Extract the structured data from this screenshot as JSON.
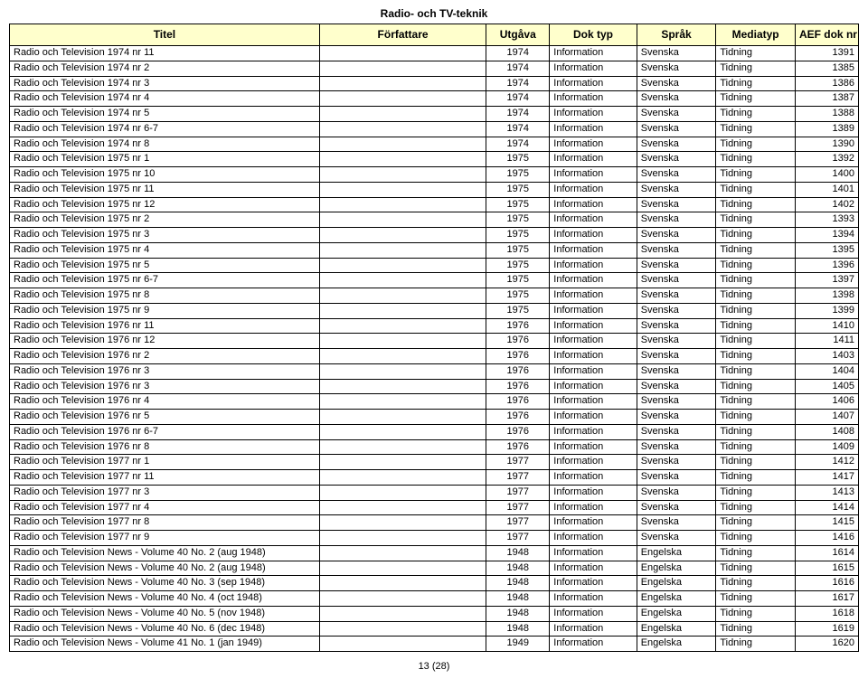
{
  "pageTitle": "Radio- och TV-teknik",
  "footer": "13 (28)",
  "headers": {
    "title": "Titel",
    "author": "Författare",
    "edition": "Utgåva",
    "doctype": "Dok typ",
    "lang": "Språk",
    "media": "Mediatyp",
    "doknr": "AEF dok nr"
  },
  "rows": [
    {
      "title": "Radio och Television 1974 nr 11",
      "author": "",
      "ed": "1974",
      "doc": "Information",
      "lang": "Svenska",
      "media": "Tidning",
      "nr": "1391"
    },
    {
      "title": "Radio och Television 1974 nr 2",
      "author": "",
      "ed": "1974",
      "doc": "Information",
      "lang": "Svenska",
      "media": "Tidning",
      "nr": "1385"
    },
    {
      "title": "Radio och Television 1974 nr 3",
      "author": "",
      "ed": "1974",
      "doc": "Information",
      "lang": "Svenska",
      "media": "Tidning",
      "nr": "1386"
    },
    {
      "title": "Radio och Television 1974 nr 4",
      "author": "",
      "ed": "1974",
      "doc": "Information",
      "lang": "Svenska",
      "media": "Tidning",
      "nr": "1387"
    },
    {
      "title": "Radio och Television 1974 nr 5",
      "author": "",
      "ed": "1974",
      "doc": "Information",
      "lang": "Svenska",
      "media": "Tidning",
      "nr": "1388"
    },
    {
      "title": "Radio och Television 1974 nr 6-7",
      "author": "",
      "ed": "1974",
      "doc": "Information",
      "lang": "Svenska",
      "media": "Tidning",
      "nr": "1389"
    },
    {
      "title": "Radio och Television 1974 nr 8",
      "author": "",
      "ed": "1974",
      "doc": "Information",
      "lang": "Svenska",
      "media": "Tidning",
      "nr": "1390"
    },
    {
      "title": "Radio och Television 1975 nr 1",
      "author": "",
      "ed": "1975",
      "doc": "Information",
      "lang": "Svenska",
      "media": "Tidning",
      "nr": "1392"
    },
    {
      "title": "Radio och Television 1975 nr 10",
      "author": "",
      "ed": "1975",
      "doc": "Information",
      "lang": "Svenska",
      "media": "Tidning",
      "nr": "1400"
    },
    {
      "title": "Radio och Television 1975 nr 11",
      "author": "",
      "ed": "1975",
      "doc": "Information",
      "lang": "Svenska",
      "media": "Tidning",
      "nr": "1401"
    },
    {
      "title": "Radio och Television 1975 nr 12",
      "author": "",
      "ed": "1975",
      "doc": "Information",
      "lang": "Svenska",
      "media": "Tidning",
      "nr": "1402"
    },
    {
      "title": "Radio och Television 1975 nr 2",
      "author": "",
      "ed": "1975",
      "doc": "Information",
      "lang": "Svenska",
      "media": "Tidning",
      "nr": "1393"
    },
    {
      "title": "Radio och Television 1975 nr 3",
      "author": "",
      "ed": "1975",
      "doc": "Information",
      "lang": "Svenska",
      "media": "Tidning",
      "nr": "1394"
    },
    {
      "title": "Radio och Television 1975 nr 4",
      "author": "",
      "ed": "1975",
      "doc": "Information",
      "lang": "Svenska",
      "media": "Tidning",
      "nr": "1395"
    },
    {
      "title": "Radio och Television 1975 nr 5",
      "author": "",
      "ed": "1975",
      "doc": "Information",
      "lang": "Svenska",
      "media": "Tidning",
      "nr": "1396"
    },
    {
      "title": "Radio och Television 1975 nr 6-7",
      "author": "",
      "ed": "1975",
      "doc": "Information",
      "lang": "Svenska",
      "media": "Tidning",
      "nr": "1397"
    },
    {
      "title": "Radio och Television 1975 nr 8",
      "author": "",
      "ed": "1975",
      "doc": "Information",
      "lang": "Svenska",
      "media": "Tidning",
      "nr": "1398"
    },
    {
      "title": "Radio och Television 1975 nr 9",
      "author": "",
      "ed": "1975",
      "doc": "Information",
      "lang": "Svenska",
      "media": "Tidning",
      "nr": "1399"
    },
    {
      "title": "Radio och Television 1976 nr 11",
      "author": "",
      "ed": "1976",
      "doc": "Information",
      "lang": "Svenska",
      "media": "Tidning",
      "nr": "1410"
    },
    {
      "title": "Radio och Television 1976 nr 12",
      "author": "",
      "ed": "1976",
      "doc": "Information",
      "lang": "Svenska",
      "media": "Tidning",
      "nr": "1411"
    },
    {
      "title": "Radio och Television 1976 nr 2",
      "author": "",
      "ed": "1976",
      "doc": "Information",
      "lang": "Svenska",
      "media": "Tidning",
      "nr": "1403"
    },
    {
      "title": "Radio och Television 1976 nr 3",
      "author": "",
      "ed": "1976",
      "doc": "Information",
      "lang": "Svenska",
      "media": "Tidning",
      "nr": "1404"
    },
    {
      "title": "Radio och Television 1976 nr 3",
      "author": "",
      "ed": "1976",
      "doc": "Information",
      "lang": "Svenska",
      "media": "Tidning",
      "nr": "1405"
    },
    {
      "title": "Radio och Television 1976 nr 4",
      "author": "",
      "ed": "1976",
      "doc": "Information",
      "lang": "Svenska",
      "media": "Tidning",
      "nr": "1406"
    },
    {
      "title": "Radio och Television 1976 nr 5",
      "author": "",
      "ed": "1976",
      "doc": "Information",
      "lang": "Svenska",
      "media": "Tidning",
      "nr": "1407"
    },
    {
      "title": "Radio och Television 1976 nr 6-7",
      "author": "",
      "ed": "1976",
      "doc": "Information",
      "lang": "Svenska",
      "media": "Tidning",
      "nr": "1408"
    },
    {
      "title": "Radio och Television 1976 nr 8",
      "author": "",
      "ed": "1976",
      "doc": "Information",
      "lang": "Svenska",
      "media": "Tidning",
      "nr": "1409"
    },
    {
      "title": "Radio och Television 1977 nr 1",
      "author": "",
      "ed": "1977",
      "doc": "Information",
      "lang": "Svenska",
      "media": "Tidning",
      "nr": "1412"
    },
    {
      "title": "Radio och Television 1977 nr 11",
      "author": "",
      "ed": "1977",
      "doc": "Information",
      "lang": "Svenska",
      "media": "Tidning",
      "nr": "1417"
    },
    {
      "title": "Radio och Television 1977 nr 3",
      "author": "",
      "ed": "1977",
      "doc": "Information",
      "lang": "Svenska",
      "media": "Tidning",
      "nr": "1413"
    },
    {
      "title": "Radio och Television 1977 nr 4",
      "author": "",
      "ed": "1977",
      "doc": "Information",
      "lang": "Svenska",
      "media": "Tidning",
      "nr": "1414"
    },
    {
      "title": "Radio och Television 1977 nr 8",
      "author": "",
      "ed": "1977",
      "doc": "Information",
      "lang": "Svenska",
      "media": "Tidning",
      "nr": "1415"
    },
    {
      "title": "Radio och Television 1977 nr 9",
      "author": "",
      "ed": "1977",
      "doc": "Information",
      "lang": "Svenska",
      "media": "Tidning",
      "nr": "1416"
    },
    {
      "title": "Radio och Television News - Volume 40 No. 2 (aug 1948)",
      "author": "",
      "ed": "1948",
      "doc": "Information",
      "lang": "Engelska",
      "media": "Tidning",
      "nr": "1614"
    },
    {
      "title": "Radio och Television News - Volume 40 No. 2 (aug 1948)",
      "author": "",
      "ed": "1948",
      "doc": "Information",
      "lang": "Engelska",
      "media": "Tidning",
      "nr": "1615"
    },
    {
      "title": "Radio och Television News - Volume 40 No. 3 (sep 1948)",
      "author": "",
      "ed": "1948",
      "doc": "Information",
      "lang": "Engelska",
      "media": "Tidning",
      "nr": "1616"
    },
    {
      "title": "Radio och Television News - Volume 40 No. 4 (oct 1948)",
      "author": "",
      "ed": "1948",
      "doc": "Information",
      "lang": "Engelska",
      "media": "Tidning",
      "nr": "1617"
    },
    {
      "title": "Radio och Television News - Volume 40 No. 5 (nov 1948)",
      "author": "",
      "ed": "1948",
      "doc": "Information",
      "lang": "Engelska",
      "media": "Tidning",
      "nr": "1618"
    },
    {
      "title": "Radio och Television News - Volume 40 No. 6 (dec 1948)",
      "author": "",
      "ed": "1948",
      "doc": "Information",
      "lang": "Engelska",
      "media": "Tidning",
      "nr": "1619"
    },
    {
      "title": "Radio och Television News - Volume 41 No. 1 (jan 1949)",
      "author": "",
      "ed": "1949",
      "doc": "Information",
      "lang": "Engelska",
      "media": "Tidning",
      "nr": "1620"
    }
  ]
}
